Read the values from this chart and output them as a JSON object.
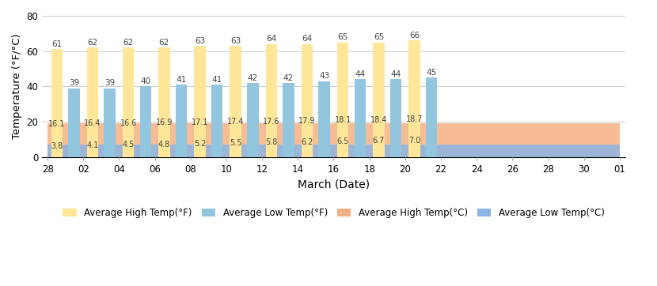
{
  "xlabel": "March (Date)",
  "ylabel": "Temperature (°F/°C)",
  "xlabels": [
    "28",
    "02",
    "04",
    "06",
    "08",
    "10",
    "12",
    "14",
    "16",
    "18",
    "20",
    "22",
    "24",
    "26",
    "28",
    "30",
    "01"
  ],
  "high_F": [
    61,
    62,
    62,
    62,
    63,
    63,
    64,
    64,
    65,
    65,
    66
  ],
  "low_F": [
    39,
    39,
    40,
    41,
    41,
    42,
    42,
    43,
    44,
    44,
    45
  ],
  "high_C": [
    16.1,
    16.4,
    16.6,
    16.9,
    17.1,
    17.4,
    17.6,
    17.9,
    18.1,
    18.4,
    18.7
  ],
  "low_C": [
    3.8,
    4.1,
    4.5,
    4.8,
    5.2,
    5.5,
    5.8,
    6.2,
    6.5,
    6.7,
    7.0
  ],
  "ylim": [
    0,
    80
  ],
  "yticks": [
    0,
    20,
    40,
    60,
    80
  ],
  "color_high_F": "#FFE699",
  "color_low_F": "#92C5DE",
  "color_high_C": "#F4B183",
  "color_low_C": "#9DC3E6",
  "legend_labels": [
    "Average High Temp(°F)",
    "Average Low Temp(°F)",
    "Average High Temp(°C)",
    "Average Low Temp(°C)"
  ]
}
